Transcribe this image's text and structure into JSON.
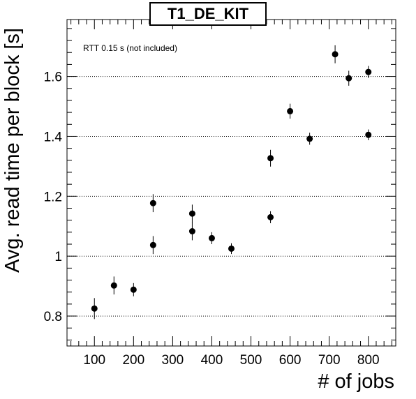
{
  "chart_data": {
    "type": "scatter",
    "title": "T1_DE_KIT",
    "xlabel": "# of jobs",
    "ylabel": "Avg. read time per block [s]",
    "annotation": "RTT 0.15 s (not included)",
    "xlim": [
      30,
      870
    ],
    "ylim": [
      0.7,
      1.79
    ],
    "x_ticks": [
      100,
      200,
      300,
      400,
      500,
      600,
      700,
      800
    ],
    "y_ticks": [
      0.8,
      1,
      1.2,
      1.4,
      1.6
    ],
    "y_tick_labels": [
      "0.8",
      "1",
      "1.2",
      "1.4",
      "1.6"
    ],
    "grid": "y-dotted",
    "points": [
      {
        "x": 100,
        "y": 0.825,
        "err": 0.035
      },
      {
        "x": 150,
        "y": 0.902,
        "err": 0.03
      },
      {
        "x": 200,
        "y": 0.888,
        "err": 0.022
      },
      {
        "x": 250,
        "y": 1.177,
        "err": 0.03
      },
      {
        "x": 250,
        "y": 1.037,
        "err": 0.03
      },
      {
        "x": 350,
        "y": 1.142,
        "err": 0.03
      },
      {
        "x": 350,
        "y": 1.083,
        "err": 0.03
      },
      {
        "x": 400,
        "y": 1.06,
        "err": 0.02
      },
      {
        "x": 450,
        "y": 1.025,
        "err": 0.018
      },
      {
        "x": 550,
        "y": 1.327,
        "err": 0.028
      },
      {
        "x": 550,
        "y": 1.13,
        "err": 0.02
      },
      {
        "x": 600,
        "y": 1.484,
        "err": 0.025
      },
      {
        "x": 650,
        "y": 1.392,
        "err": 0.02
      },
      {
        "x": 715,
        "y": 1.674,
        "err": 0.03
      },
      {
        "x": 750,
        "y": 1.594,
        "err": 0.025
      },
      {
        "x": 800,
        "y": 1.615,
        "err": 0.02
      },
      {
        "x": 800,
        "y": 1.405,
        "err": 0.018
      }
    ]
  }
}
